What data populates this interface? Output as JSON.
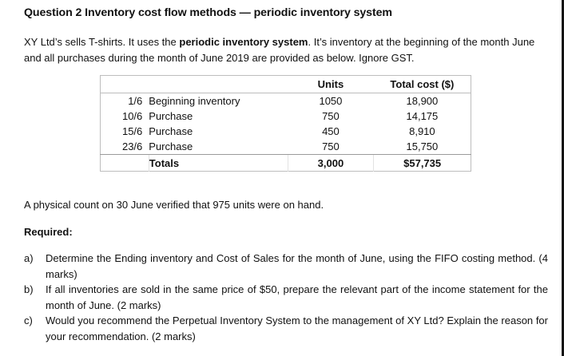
{
  "question": {
    "title": "Question 2 Inventory cost flow methods — periodic inventory system",
    "intro_part1": "XY Ltd’s sells T-shirts. It uses the ",
    "intro_bold": "periodic inventory system",
    "intro_part2": ". It’s inventory at the beginning of the month June and all purchases during the month of June 2019 are provided as below. Ignore GST."
  },
  "table": {
    "headers": {
      "date": "",
      "description": "",
      "units": "Units",
      "total_cost": "Total cost ($)"
    },
    "rows": [
      {
        "date": "1/6",
        "description": "Beginning inventory",
        "units": "1050",
        "total_cost": "18,900"
      },
      {
        "date": "10/6",
        "description": "Purchase",
        "units": "750",
        "total_cost": "14,175"
      },
      {
        "date": "15/6",
        "description": "Purchase",
        "units": "450",
        "total_cost": "8,910"
      },
      {
        "date": "23/6",
        "description": "Purchase",
        "units": "750",
        "total_cost": "15,750"
      }
    ],
    "totals": {
      "label": "Totals",
      "units": "3,000",
      "total_cost": "$57,735"
    }
  },
  "physical_count": "A physical count on 30 June verified that 975 units were on hand.",
  "required": {
    "heading": "Required:",
    "items": [
      {
        "marker": "a)",
        "text": "Determine the Ending inventory and Cost of Sales for the month of June, using the FIFO costing method. (4 marks)"
      },
      {
        "marker": "b)",
        "text": "If all inventories are sold in the same price of $50, prepare the relevant part of the income statement for the month of June. (2 marks)"
      },
      {
        "marker": "c)",
        "text": "Would you recommend the Perpetual Inventory System to the management of XY Ltd? Explain the reason for your recommendation. (2 marks)"
      }
    ]
  }
}
